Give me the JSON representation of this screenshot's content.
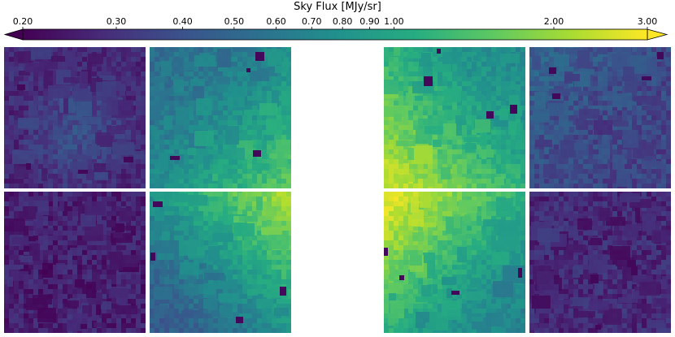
{
  "chart_data": {
    "type": "heatmap",
    "colorbar": {
      "label": "Sky Flux [MJy/sr]",
      "scale": "log",
      "range": [
        0.2,
        3.0
      ],
      "extend": "both",
      "colormap": "viridis",
      "ticks": [
        0.2,
        0.3,
        0.4,
        0.5,
        0.6,
        0.7,
        0.8,
        0.9,
        1.0,
        2.0,
        3.0
      ],
      "tick_labels": [
        "0.20",
        "0.30",
        "0.40",
        "0.50",
        "0.60",
        "0.70",
        "0.80",
        "0.90",
        "1.00",
        "2.00",
        "3.00"
      ]
    },
    "panels": [
      {
        "id": "A1",
        "group": "left",
        "row": 0,
        "col": 0,
        "base": 0.28,
        "gradient": "center-glow",
        "peak": 0.4,
        "contrast": 0.35
      },
      {
        "id": "A2",
        "group": "left",
        "row": 0,
        "col": 1,
        "base": 0.55,
        "gradient": "bottom-right",
        "peak": 1.6,
        "contrast": 0.3
      },
      {
        "id": "A3",
        "group": "left",
        "row": 1,
        "col": 0,
        "base": 0.26,
        "gradient": "flat",
        "peak": 0.33,
        "contrast": 0.4
      },
      {
        "id": "A4",
        "group": "left",
        "row": 1,
        "col": 1,
        "base": 0.45,
        "gradient": "top-right",
        "peak": 2.2,
        "contrast": 0.3
      },
      {
        "id": "B1",
        "group": "right",
        "row": 0,
        "col": 0,
        "base": 0.75,
        "gradient": "bottom-left",
        "peak": 2.6,
        "contrast": 0.3
      },
      {
        "id": "B2",
        "group": "right",
        "row": 0,
        "col": 1,
        "base": 0.35,
        "gradient": "top-left",
        "peak": 0.5,
        "contrast": 0.4
      },
      {
        "id": "B3",
        "group": "right",
        "row": 1,
        "col": 0,
        "base": 0.7,
        "gradient": "top-left",
        "peak": 2.9,
        "contrast": 0.3
      },
      {
        "id": "B4",
        "group": "right",
        "row": 1,
        "col": 1,
        "base": 0.28,
        "gradient": "flat",
        "peak": 0.36,
        "contrast": 0.4
      }
    ]
  }
}
